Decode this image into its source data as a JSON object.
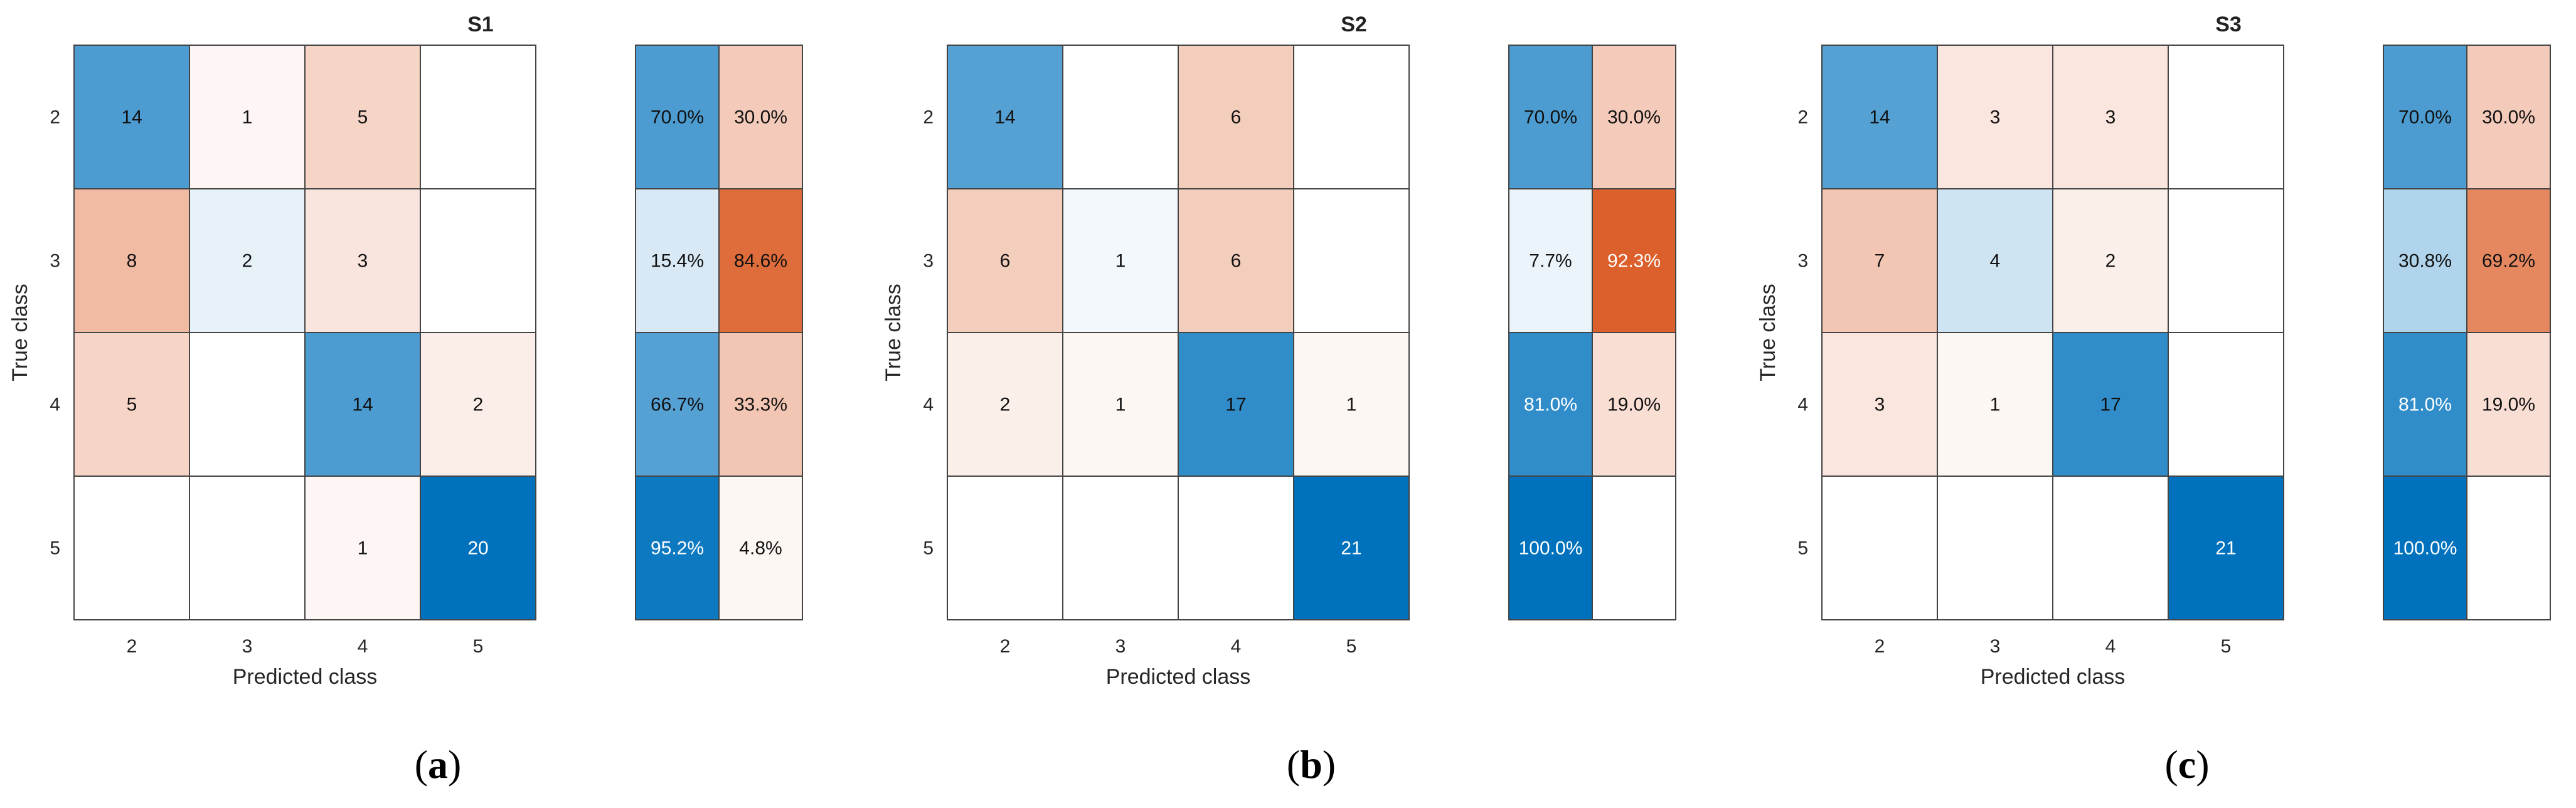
{
  "figure": {
    "panel_labels": [
      {
        "open": "(",
        "letter": "a",
        "close": ")"
      },
      {
        "open": "(",
        "letter": "b",
        "close": ")"
      },
      {
        "open": "(",
        "letter": "c",
        "close": ")"
      }
    ]
  },
  "colors": {
    "correct": "#0072BD",
    "incorrect": "#D95319",
    "grid": "#444444",
    "dark_text": "#111111",
    "light_text": "#ffffff"
  },
  "chart_data": [
    {
      "type": "heatmap",
      "title": "S1",
      "xlabel": "Predicted class",
      "ylabel": "True class",
      "classes": [
        "2",
        "3",
        "4",
        "5"
      ],
      "matrix": [
        [
          14,
          1,
          5,
          0
        ],
        [
          8,
          2,
          3,
          0
        ],
        [
          5,
          0,
          14,
          2
        ],
        [
          0,
          0,
          1,
          20
        ]
      ],
      "row_summary": [
        [
          "70.0%",
          "30.0%"
        ],
        [
          "15.4%",
          "84.6%"
        ],
        [
          "66.7%",
          "33.3%"
        ],
        [
          "95.2%",
          "4.8%"
        ]
      ],
      "row_summary_values": [
        [
          70.0,
          30.0
        ],
        [
          15.4,
          84.6
        ],
        [
          66.7,
          33.3
        ],
        [
          95.2,
          4.8
        ]
      ]
    },
    {
      "type": "heatmap",
      "title": "S2",
      "xlabel": "Predicted class",
      "ylabel": "True class",
      "classes": [
        "2",
        "3",
        "4",
        "5"
      ],
      "matrix": [
        [
          14,
          0,
          6,
          0
        ],
        [
          6,
          1,
          6,
          0
        ],
        [
          2,
          1,
          17,
          1
        ],
        [
          0,
          0,
          0,
          21
        ]
      ],
      "row_summary": [
        [
          "70.0%",
          "30.0%"
        ],
        [
          "7.7%",
          "92.3%"
        ],
        [
          "81.0%",
          "19.0%"
        ],
        [
          "100.0%",
          ""
        ]
      ],
      "row_summary_values": [
        [
          70.0,
          30.0
        ],
        [
          7.7,
          92.3
        ],
        [
          81.0,
          19.0
        ],
        [
          100.0,
          0
        ]
      ]
    },
    {
      "type": "heatmap",
      "title": "S3",
      "xlabel": "Predicted class",
      "ylabel": "True class",
      "classes": [
        "2",
        "3",
        "4",
        "5"
      ],
      "matrix": [
        [
          14,
          3,
          3,
          0
        ],
        [
          7,
          4,
          2,
          0
        ],
        [
          3,
          1,
          17,
          0
        ],
        [
          0,
          0,
          0,
          21
        ]
      ],
      "row_summary": [
        [
          "70.0%",
          "30.0%"
        ],
        [
          "30.8%",
          "69.2%"
        ],
        [
          "81.0%",
          "19.0%"
        ],
        [
          "100.0%",
          ""
        ]
      ],
      "row_summary_values": [
        [
          70.0,
          30.0
        ],
        [
          30.8,
          69.2
        ],
        [
          81.0,
          19.0
        ],
        [
          100.0,
          0
        ]
      ]
    }
  ]
}
